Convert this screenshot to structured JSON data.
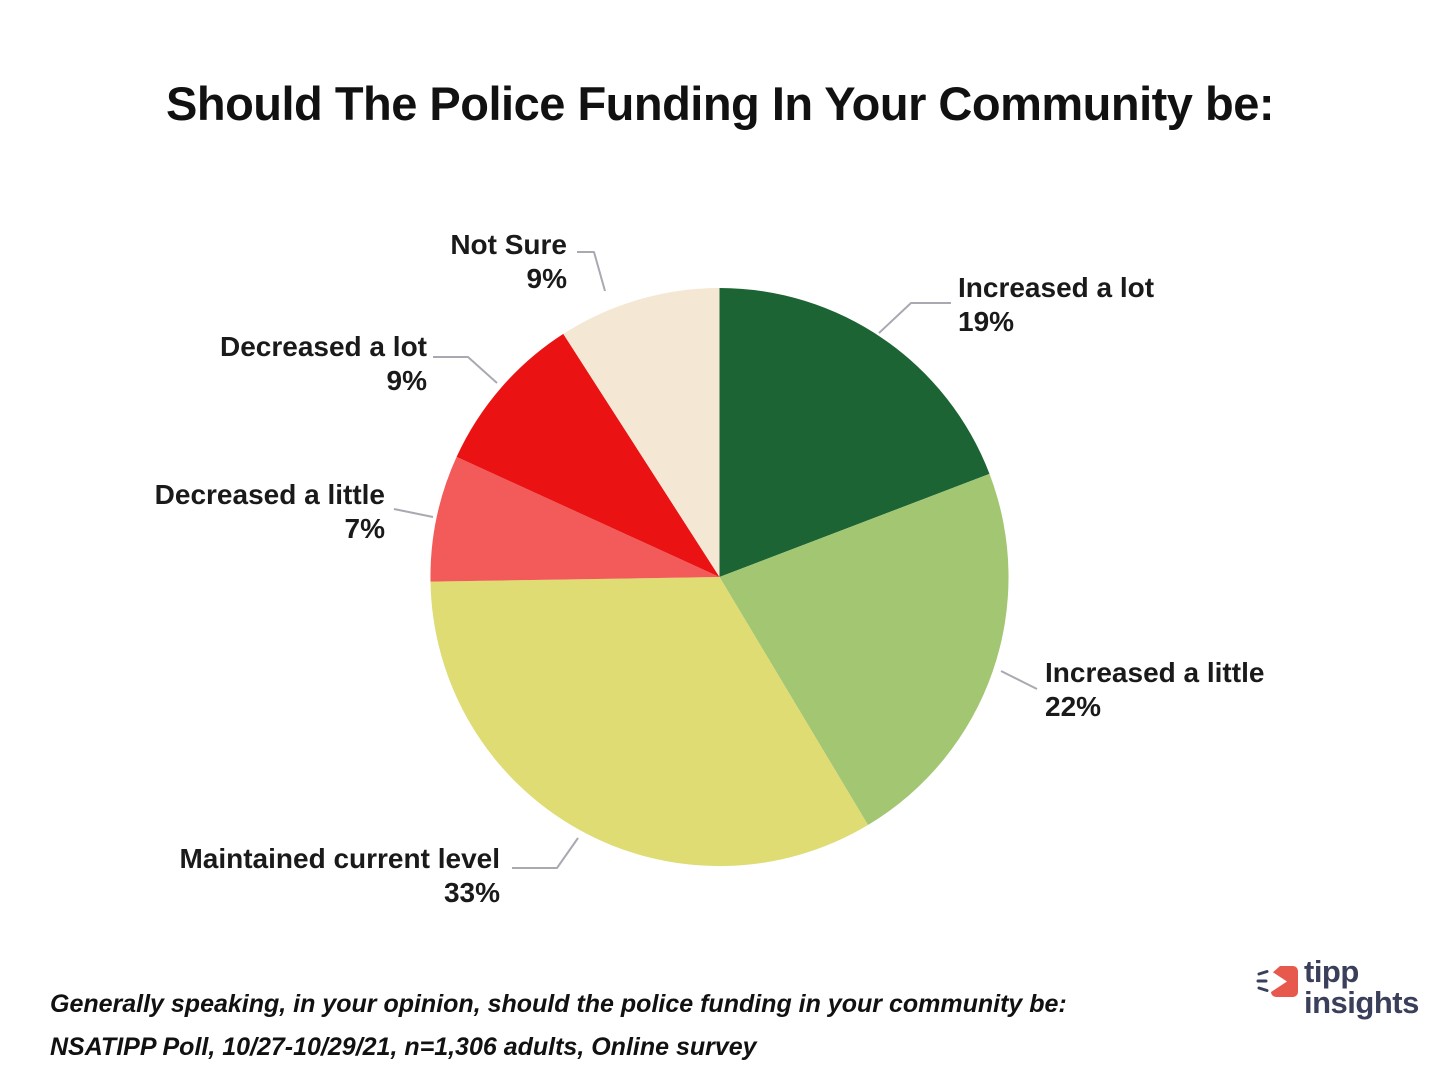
{
  "chart_data": {
    "type": "pie",
    "title": "Should The Police Funding In Your Community be:",
    "start_angle_deg": 0,
    "direction": "clockwise",
    "values_total": 99,
    "legend": "none",
    "labels_style": "outside callouts with leader lines, category name + percent",
    "slices": [
      {
        "label": "Increased a lot",
        "value": 19,
        "pct_label": "19%",
        "color": "#1C6434"
      },
      {
        "label": "Increased a little",
        "value": 22,
        "pct_label": "22%",
        "color": "#A3C672"
      },
      {
        "label": "Maintained current level",
        "value": 33,
        "pct_label": "33%",
        "color": "#DEDC73"
      },
      {
        "label": "Decreased a little",
        "value": 7,
        "pct_label": "7%",
        "color": "#F25B59"
      },
      {
        "label": "Decreased a lot",
        "value": 9,
        "pct_label": "9%",
        "color": "#EA1212"
      },
      {
        "label": "Not Sure",
        "value": 9,
        "pct_label": "9%",
        "color": "#F4E8D4"
      }
    ]
  },
  "footnote": {
    "line1": "Generally speaking, in your opinion, should the police funding in your community be:",
    "line2": "NSATIPP Poll, 10/27-10/29/21, n=1,306 adults, Online survey"
  },
  "logo": {
    "word1": "tipp",
    "word2": "insights",
    "brand_red": "#E8594D",
    "brand_navy": "#3A3F5B"
  },
  "colors": {
    "background": "#FFFFFF",
    "text": "#1A1A1A",
    "leader_line": "#A9A9B2"
  }
}
